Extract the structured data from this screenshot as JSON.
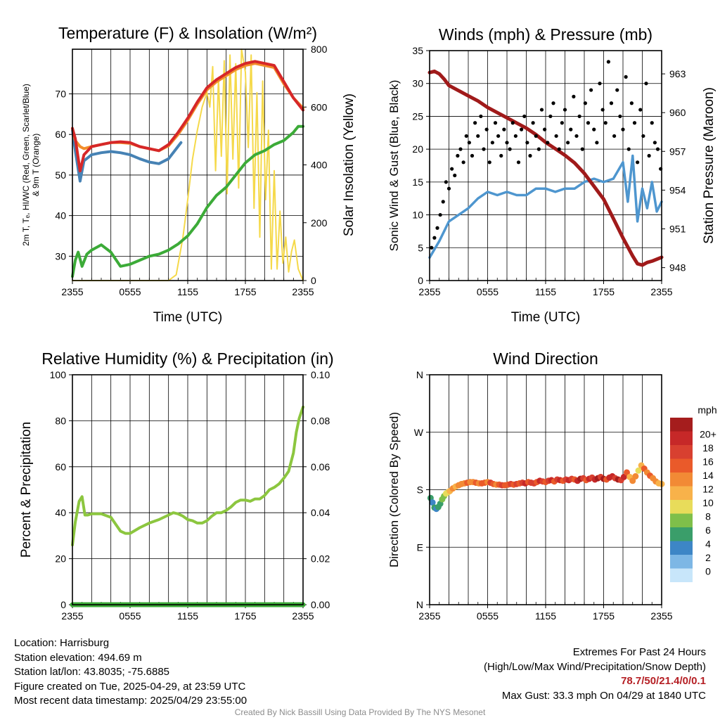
{
  "charts": {
    "temperature": {
      "title": "Temperature (F) & Insolation (W/m²)",
      "ylabel_left": [
        "2m T, Tₑ, HI/WC (Red, Green, Scarlet/Blue)",
        "& 9m T (Orange)"
      ],
      "ylabel_right": "Solar Insolation (Yellow)",
      "xlabel": "Time (UTC)"
    },
    "winds": {
      "title": "Winds (mph) & Pressure (mb)",
      "ylabel_left": "Sonic Wind & Gust (Blue, Black)",
      "ylabel_right": "Station Pressure (Maroon)",
      "xlabel": "Time (UTC)"
    },
    "humidity": {
      "title": "Relative Humidity (%) & Precipitation (in)",
      "ylabel_left": "Percent & Precipitation"
    },
    "direction": {
      "title": "Wind Direction",
      "ylabel_left": "Direction (Colored By Speed)",
      "colorbar_title": "mph"
    }
  },
  "chart_data": [
    {
      "type": "line",
      "x_ticks": [
        "2355",
        "0555",
        "1155",
        "1755",
        "2355"
      ],
      "x_hours": [
        0,
        6,
        12,
        18,
        24
      ],
      "ylim": [
        24,
        81
      ],
      "y_ticks": [
        30,
        40,
        50,
        60,
        70
      ],
      "y2lim": [
        0,
        800
      ],
      "y2_ticks": [
        0,
        200,
        400,
        600,
        800
      ],
      "series": [
        {
          "color": "#d62728",
          "axis": "left",
          "x": [
            0,
            0.3,
            0.8,
            1.2,
            2,
            3,
            4,
            5,
            6,
            7,
            8,
            9,
            10,
            11,
            12,
            13,
            14,
            15,
            16,
            17,
            18,
            19,
            20,
            21,
            22,
            23,
            24
          ],
          "y": [
            61.5,
            59,
            51,
            55,
            57,
            57.5,
            58,
            58.2,
            58,
            57,
            56.5,
            56,
            57.5,
            60.5,
            64,
            68,
            71.5,
            73.5,
            75,
            76.5,
            77.5,
            78,
            77.5,
            77,
            73,
            69,
            66
          ]
        },
        {
          "color": "#f28e2b",
          "axis": "left",
          "x": [
            0,
            0.3,
            0.8,
            1.2,
            2,
            3,
            4,
            5,
            6,
            7,
            8,
            9,
            10,
            11,
            12,
            13,
            14,
            15,
            16,
            17,
            18,
            19,
            20,
            21,
            22,
            23,
            24
          ],
          "y": [
            61.5,
            58.5,
            57,
            56.5,
            57,
            57.5,
            58,
            58,
            57.8,
            57,
            56.5,
            56,
            57.2,
            60,
            63.5,
            67.5,
            71,
            73,
            74.5,
            76,
            77,
            77.5,
            77,
            76.5,
            72.5,
            69,
            66.5
          ]
        },
        {
          "color": "#4682b4",
          "axis": "left",
          "x": [
            0,
            0.3,
            0.8,
            1.2,
            2,
            3,
            4,
            5,
            6,
            7,
            8,
            9,
            10,
            11.3
          ],
          "y": [
            61,
            56,
            48.5,
            53.5,
            55,
            55.5,
            55.8,
            55.5,
            55,
            54,
            53.2,
            52.8,
            54,
            58
          ]
        },
        {
          "color": "#3cab38",
          "axis": "left",
          "x": [
            0,
            0.3,
            0.6,
            1,
            1.5,
            2,
            3,
            4,
            5,
            6,
            7,
            8,
            9,
            10,
            11,
            12,
            13,
            14,
            15,
            16,
            17,
            18,
            19,
            20,
            21,
            22,
            23,
            23.5,
            24
          ],
          "y": [
            25,
            29,
            31,
            27.5,
            30.5,
            31.5,
            32.8,
            31,
            27.5,
            28,
            29,
            30,
            30.5,
            31.5,
            33,
            35,
            38,
            42,
            45,
            47,
            50,
            53,
            55,
            56,
            57.5,
            58.5,
            60.5,
            62,
            62
          ]
        },
        {
          "color": "#f5d94a",
          "axis": "right",
          "x": [
            0,
            1,
            2,
            3,
            4,
            5,
            6,
            7,
            8,
            9,
            10,
            10.8,
            11.5,
            12,
            12.5,
            13,
            13.5,
            14,
            14.3,
            14.6,
            14.9,
            15.2,
            15.5,
            15.8,
            16.1,
            16.4,
            16.7,
            17,
            17.3,
            17.6,
            18,
            18.3,
            18.6,
            18.9,
            19.2,
            19.5,
            19.8,
            20.1,
            20.4,
            20.7,
            21,
            21.3,
            21.6,
            21.9,
            22.2,
            22.5,
            22.8,
            23.1,
            23.5,
            24
          ],
          "y": [
            0,
            0,
            0,
            0,
            0,
            0,
            0,
            0,
            0,
            0,
            0,
            20,
            150,
            280,
            420,
            520,
            600,
            650,
            600,
            740,
            380,
            700,
            430,
            760,
            300,
            780,
            420,
            750,
            320,
            800,
            720,
            460,
            780,
            250,
            650,
            150,
            690,
            280,
            520,
            40,
            380,
            40,
            240,
            60,
            150,
            30,
            100,
            140,
            40,
            0
          ]
        }
      ]
    },
    {
      "type": "line",
      "x_ticks": [
        "2355",
        "0555",
        "1155",
        "1755",
        "2355"
      ],
      "x_hours": [
        0,
        6,
        12,
        18,
        24
      ],
      "ylim": [
        0,
        35
      ],
      "y_ticks": [
        0,
        5,
        10,
        15,
        20,
        25,
        30,
        35
      ],
      "y2lim": [
        947,
        964.8
      ],
      "y2_ticks": [
        948,
        951,
        954,
        957,
        960,
        963
      ],
      "series": [
        {
          "type": "line",
          "color": "#4e96cf",
          "axis": "left",
          "x": [
            0,
            1,
            2,
            3,
            4,
            5,
            6,
            7,
            8,
            9,
            10,
            11,
            12,
            13,
            14,
            15,
            16,
            17,
            18,
            19,
            20,
            20.5,
            21,
            21.5,
            22,
            22.5,
            23,
            23.5,
            24
          ],
          "y": [
            3.5,
            6,
            9,
            10,
            11,
            12.5,
            13.5,
            13,
            13.5,
            13,
            13,
            14,
            14,
            13.5,
            14,
            14,
            15,
            15.5,
            15,
            15.5,
            18,
            12,
            19,
            9,
            14,
            11,
            15,
            10.5,
            12
          ]
        },
        {
          "type": "line",
          "color": "#a01a1a",
          "axis": "right",
          "x": [
            0,
            0.5,
            1,
            1.5,
            2,
            3,
            4,
            5,
            6,
            7,
            8,
            9,
            10,
            11,
            12,
            13,
            14,
            15,
            16,
            17,
            18,
            19,
            20,
            21,
            21.5,
            22,
            22.5,
            23,
            24
          ],
          "y": [
            963.1,
            963.2,
            963,
            962.6,
            962.1,
            961.7,
            961.3,
            960.9,
            960.4,
            960,
            959.6,
            959.2,
            958.8,
            958.3,
            957.7,
            957.2,
            956.7,
            956.1,
            955.3,
            954.3,
            953.3,
            951.8,
            950.3,
            948.9,
            948.3,
            948.2,
            948.4,
            948.5,
            948.8
          ]
        },
        {
          "type": "scatter",
          "color": "#000000",
          "axis": "left",
          "x": [
            0.2,
            0.5,
            0.8,
            1.1,
            1.4,
            1.7,
            2,
            2.3,
            2.6,
            2.9,
            3.2,
            3.5,
            3.8,
            4.1,
            4.4,
            4.7,
            5,
            5.3,
            5.6,
            5.9,
            6.2,
            6.5,
            6.8,
            7.1,
            7.4,
            7.7,
            8,
            8.3,
            8.6,
            8.9,
            9.2,
            9.5,
            9.8,
            10.1,
            10.4,
            10.7,
            11,
            11.3,
            11.6,
            11.9,
            12.2,
            12.5,
            12.8,
            13.1,
            13.4,
            13.7,
            14,
            14.3,
            14.6,
            14.9,
            15.2,
            15.5,
            15.8,
            16.1,
            16.4,
            16.7,
            17,
            17.3,
            17.6,
            17.9,
            18.2,
            18.5,
            18.8,
            19.1,
            19.4,
            19.7,
            20,
            20.3,
            20.6,
            20.9,
            21.2,
            21.5,
            21.8,
            22.1,
            22.4,
            22.7,
            23,
            23.3,
            23.6,
            23.9
          ],
          "y": [
            5,
            6.5,
            8,
            10,
            12,
            15,
            14,
            17,
            16,
            19,
            20,
            18,
            22,
            21,
            19,
            24,
            22,
            25,
            20,
            23,
            18,
            21,
            24,
            22,
            19,
            23,
            21,
            20,
            24,
            22,
            18,
            23,
            25,
            21,
            19,
            24,
            22,
            20,
            26,
            23,
            21,
            25,
            27,
            22,
            20,
            24,
            26,
            21,
            23,
            28,
            22,
            25,
            20,
            27,
            24,
            29,
            23,
            21,
            30,
            26,
            24,
            33.3,
            27,
            22,
            29,
            25,
            23,
            31,
            20,
            27,
            24,
            18,
            26,
            22,
            30,
            19,
            24,
            21,
            20,
            17
          ]
        }
      ]
    },
    {
      "type": "line",
      "x_ticks": [
        "2355",
        "0555",
        "1155",
        "1755",
        "2355"
      ],
      "x_hours": [
        0,
        6,
        12,
        18,
        24
      ],
      "ylim": [
        0,
        100
      ],
      "y_ticks": [
        0,
        20,
        40,
        60,
        80,
        100
      ],
      "y2lim": [
        0,
        0.1
      ],
      "y2_ticks": [
        "0.00",
        "0.02",
        "0.04",
        "0.06",
        "0.08",
        "0.10"
      ],
      "series": [
        {
          "color": "#8cc63f",
          "axis": "left",
          "x": [
            0,
            0.3,
            0.7,
            1,
            1.3,
            1.6,
            2,
            3,
            4,
            4.5,
            5,
            5.5,
            6,
            7,
            8,
            9,
            10,
            10.5,
            11,
            11.5,
            12,
            12.5,
            13,
            13.5,
            14,
            14.5,
            15,
            15.5,
            16,
            16.5,
            17,
            17.5,
            18,
            18.5,
            19,
            19.5,
            20,
            20.5,
            21,
            21.5,
            22,
            22.5,
            23,
            23.3,
            23.6,
            24
          ],
          "y": [
            26,
            36,
            45,
            47,
            39,
            39,
            39.5,
            39.5,
            38,
            35,
            32,
            31,
            31,
            33.5,
            35.5,
            37,
            39,
            40,
            39.5,
            38.5,
            37,
            36.5,
            35.5,
            35.5,
            36.5,
            38.5,
            40,
            40,
            41,
            42.5,
            44.5,
            45.5,
            45.5,
            45,
            46,
            46,
            47.5,
            50,
            51,
            52.5,
            55,
            58,
            66,
            75,
            81,
            86
          ]
        },
        {
          "color": "#3cab38",
          "axis": "right",
          "x": [
            0,
            24
          ],
          "y": [
            0,
            0
          ]
        }
      ]
    },
    {
      "type": "scatter",
      "x_ticks": [
        "2355",
        "0555",
        "1155",
        "1755",
        "2355"
      ],
      "x_hours": [
        0,
        6,
        12,
        18,
        24
      ],
      "ylim": [
        0,
        360
      ],
      "y_ticks": [
        "N",
        "E",
        "S",
        "W",
        "N"
      ],
      "x": [
        0.1,
        0.3,
        0.5,
        0.7,
        0.9,
        1.1,
        1.3,
        1.5,
        1.7,
        1.9,
        2.1,
        2.4,
        2.7,
        3,
        3.3,
        3.6,
        3.9,
        4.2,
        4.5,
        4.8,
        5.1,
        5.4,
        5.7,
        6,
        6.3,
        6.6,
        6.9,
        7.2,
        7.5,
        7.8,
        8.1,
        8.4,
        8.7,
        9,
        9.3,
        9.6,
        9.9,
        10.2,
        10.5,
        10.8,
        11.1,
        11.4,
        11.7,
        12,
        12.3,
        12.6,
        12.9,
        13.2,
        13.5,
        13.8,
        14.1,
        14.4,
        14.7,
        15,
        15.3,
        15.6,
        15.9,
        16.2,
        16.5,
        16.8,
        17.1,
        17.4,
        17.7,
        18,
        18.3,
        18.6,
        18.9,
        19.2,
        19.5,
        19.8,
        20.1,
        20.4,
        20.7,
        21,
        21.3,
        21.6,
        21.9,
        22.2,
        22.5,
        22.8,
        23.1,
        23.4,
        23.7,
        24
      ],
      "y": [
        167,
        160,
        152,
        150,
        153,
        158,
        165,
        170,
        174,
        176,
        178,
        182,
        185,
        187,
        189,
        190,
        191,
        192,
        192,
        191,
        190,
        190,
        191,
        192,
        191,
        189,
        188,
        188,
        187,
        187,
        188,
        189,
        188,
        189,
        190,
        191,
        190,
        192,
        191,
        190,
        192,
        194,
        193,
        192,
        194,
        195,
        193,
        196,
        195,
        194,
        196,
        195,
        197,
        196,
        194,
        197,
        198,
        195,
        197,
        199,
        196,
        198,
        200,
        197,
        196,
        199,
        201,
        198,
        196,
        195,
        200,
        207,
        200,
        194,
        201,
        210,
        218,
        213,
        207,
        202,
        198,
        193,
        190,
        189
      ],
      "speed": [
        4,
        3,
        4,
        3,
        4,
        5,
        6,
        7,
        8,
        9,
        10,
        12,
        11,
        12,
        13,
        13,
        14,
        12,
        13,
        14,
        13,
        15,
        14,
        13,
        16,
        14,
        13,
        15,
        17,
        15,
        14,
        16,
        15,
        17,
        14,
        16,
        18,
        15,
        17,
        16,
        14,
        18,
        16,
        15,
        17,
        19,
        14,
        16,
        18,
        15,
        17,
        19,
        16,
        14,
        18,
        20,
        17,
        15,
        19,
        16,
        18,
        20,
        17,
        21,
        15,
        18,
        19,
        17,
        20,
        16,
        18,
        14,
        10,
        13,
        12,
        8,
        11,
        14,
        13,
        15,
        12,
        13,
        11,
        10
      ]
    }
  ],
  "colorbar": {
    "labels": [
      "20+",
      "18",
      "16",
      "14",
      "12",
      "10",
      "8",
      "6",
      "4",
      "2",
      "0"
    ],
    "colors": [
      "#a51d1d",
      "#c62828",
      "#d84030",
      "#ea5a2a",
      "#f28a35",
      "#f8b24a",
      "#e8dc5a",
      "#7fbf4a",
      "#3a9e6a",
      "#3d86c6",
      "#7db7e5",
      "#c8e6fa"
    ]
  },
  "info": {
    "location": "Location: Harrisburg",
    "elevation": "Station elevation: 494.69 m",
    "latlon": "Station lat/lon: 43.8035; -75.6885",
    "created": "Figure created on Tue, 2025-04-29, at 23:59 UTC",
    "recent": "Most recent data timestamp: 2025/04/29 23:55:00"
  },
  "extremes": {
    "title": "Extremes For Past 24 Hours",
    "subtitle": "(High/Low/Max Wind/Precipitation/Snow Depth)",
    "values": "78.7/50/21.4/0/0.1",
    "gust": "Max Gust: 33.3 mph On 04/29 at 1840 UTC"
  },
  "credit": "Created By Nick Bassill Using Data Provided By The NYS Mesonet"
}
